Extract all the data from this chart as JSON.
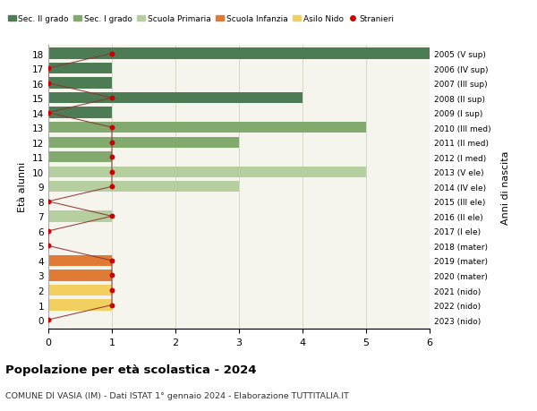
{
  "ages": [
    18,
    17,
    16,
    15,
    14,
    13,
    12,
    11,
    10,
    9,
    8,
    7,
    6,
    5,
    4,
    3,
    2,
    1,
    0
  ],
  "years": [
    "2005 (V sup)",
    "2006 (IV sup)",
    "2007 (III sup)",
    "2008 (II sup)",
    "2009 (I sup)",
    "2010 (III med)",
    "2011 (II med)",
    "2012 (I med)",
    "2013 (V ele)",
    "2014 (IV ele)",
    "2015 (III ele)",
    "2016 (II ele)",
    "2017 (I ele)",
    "2018 (mater)",
    "2019 (mater)",
    "2020 (mater)",
    "2021 (nido)",
    "2022 (nido)",
    "2023 (nido)"
  ],
  "bar_values": [
    6,
    1,
    1,
    4,
    1,
    5,
    3,
    1,
    5,
    3,
    0,
    1,
    0,
    0,
    1,
    1,
    1,
    1,
    0
  ],
  "bar_colors": [
    "#4d7c54",
    "#4d7c54",
    "#4d7c54",
    "#4d7c54",
    "#4d7c54",
    "#82a96e",
    "#82a96e",
    "#82a96e",
    "#b5cf9e",
    "#b5cf9e",
    "#b5cf9e",
    "#b5cf9e",
    "#b5cf9e",
    "#e07b35",
    "#e07b35",
    "#e07b35",
    "#f2d060",
    "#f2d060",
    "#f2d060"
  ],
  "stranieri_x": [
    1,
    0,
    0,
    1,
    0,
    1,
    1,
    1,
    1,
    1,
    0,
    1,
    0,
    0,
    1,
    1,
    1,
    1,
    0
  ],
  "legend_labels": [
    "Sec. II grado",
    "Sec. I grado",
    "Scuola Primaria",
    "Scuola Infanzia",
    "Asilo Nido",
    "Stranieri"
  ],
  "legend_colors": [
    "#4d7c54",
    "#82a96e",
    "#b5cf9e",
    "#e07b35",
    "#f2d060",
    "#cc0000"
  ],
  "ylabel_left": "Età alunni",
  "ylabel_right": "Anni di nascita",
  "title": "Popolazione per età scolastica - 2024",
  "subtitle": "COMUNE DI VASIA (IM) - Dati ISTAT 1° gennaio 2024 - Elaborazione TUTTITALIA.IT",
  "xlim": [
    0,
    6
  ],
  "plot_bg_color": "#f5f5ee",
  "bg_color": "#ffffff",
  "grid_color": "#d8d8c8",
  "bar_height": 0.75,
  "stranieri_line_color": "#8b3333",
  "stranieri_dot_color": "#cc0000"
}
